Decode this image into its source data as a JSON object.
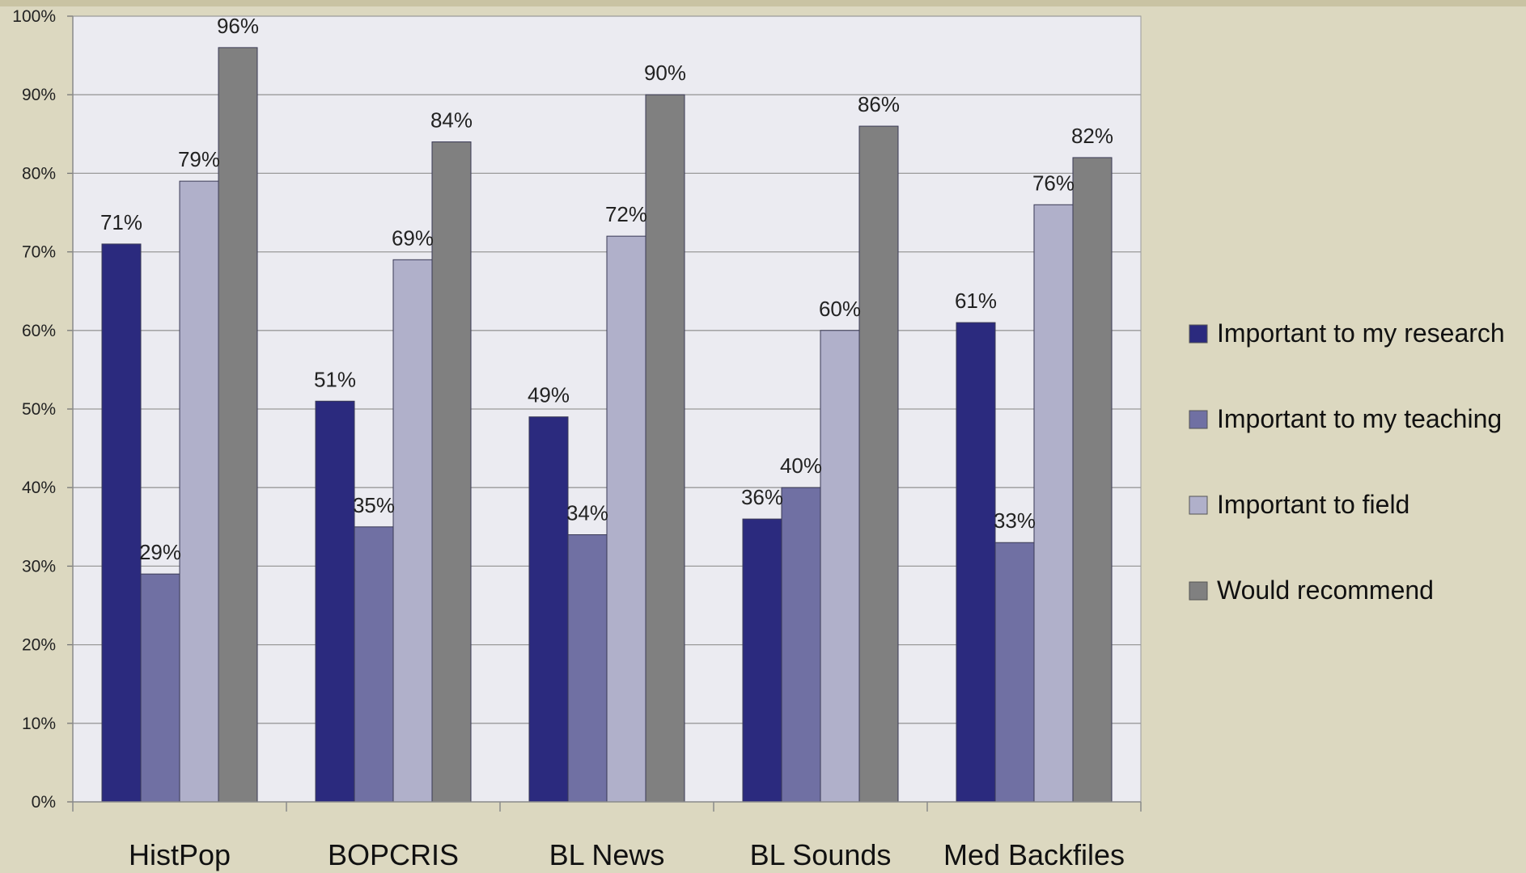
{
  "chart_data": {
    "type": "bar",
    "title": "",
    "xlabel": "",
    "ylabel": "",
    "ylim": [
      0,
      100
    ],
    "y_ticks": [
      "0%",
      "10%",
      "20%",
      "30%",
      "40%",
      "50%",
      "60%",
      "70%",
      "80%",
      "90%",
      "100%"
    ],
    "grid": true,
    "legend_position": "right",
    "categories": [
      "HistPop",
      "BOPCRIS",
      "BL News",
      "BL Sounds",
      "Med Backfiles"
    ],
    "series": [
      {
        "name": "Important to my research",
        "color": "#2b2a7e",
        "values": [
          71,
          51,
          49,
          36,
          61
        ],
        "labels": [
          "71%",
          "51%",
          "49%",
          "36%",
          "61%"
        ]
      },
      {
        "name": "Important to my teaching",
        "color": "#7070a3",
        "values": [
          29,
          35,
          34,
          40,
          33
        ],
        "labels": [
          "29%",
          "35%",
          "34%",
          "40%",
          "33%"
        ]
      },
      {
        "name": "Important to field",
        "color": "#b0b0ca",
        "values": [
          79,
          69,
          72,
          60,
          76
        ],
        "labels": [
          "79%",
          "69%",
          "72%",
          "60%",
          "76%"
        ]
      },
      {
        "name": "Would recommend",
        "color": "#808080",
        "values": [
          96,
          84,
          90,
          86,
          82
        ],
        "labels": [
          "96%",
          "84%",
          "90%",
          "86%",
          "82%"
        ]
      }
    ]
  },
  "colors": {
    "background": "#dcd8c0",
    "plot_area": "#ebebf1",
    "grid": "#9a9a9a"
  }
}
